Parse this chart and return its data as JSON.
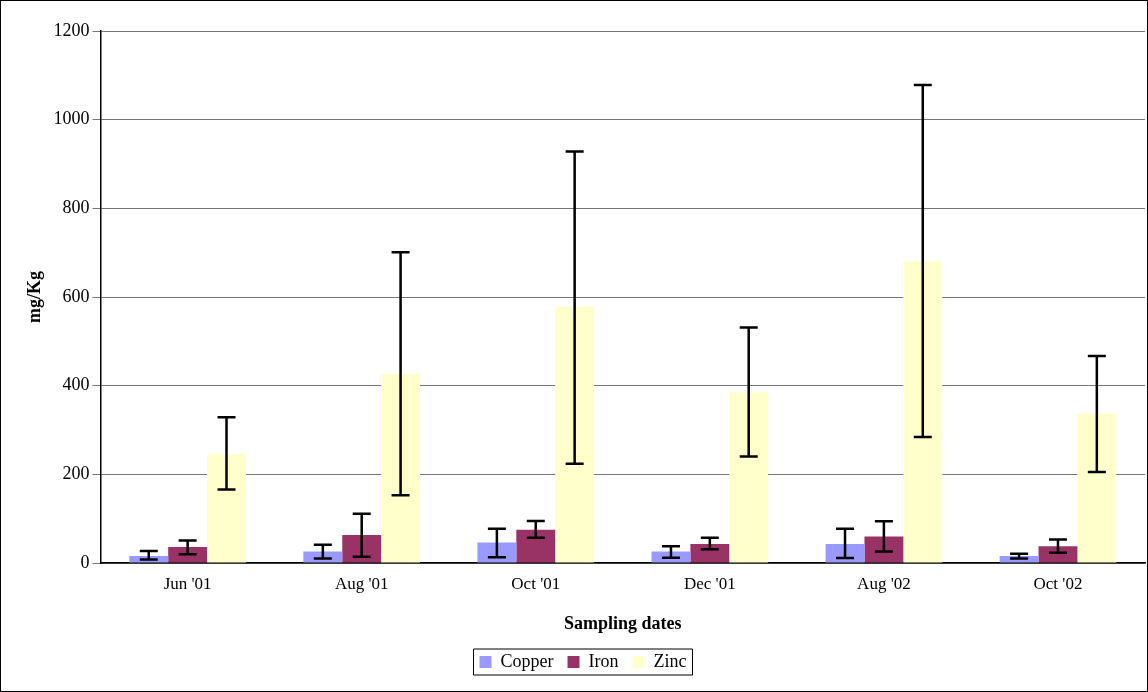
{
  "chart_data": {
    "type": "bar",
    "xlabel": "Sampling dates",
    "ylabel": "mg/Kg",
    "categories": [
      "Jun '01",
      "Aug '01",
      "Oct '01",
      "Dec '01",
      "Aug '02",
      "Oct '02"
    ],
    "series": [
      {
        "name": "Copper",
        "color": "#9999ff",
        "values": [
          16,
          26,
          46,
          26,
          43,
          16
        ],
        "errors": [
          [
            8,
            27
          ],
          [
            10,
            41
          ],
          [
            13,
            77
          ],
          [
            12,
            38
          ],
          [
            11,
            77
          ],
          [
            10,
            21
          ]
        ]
      },
      {
        "name": "Iron",
        "color": "#993366",
        "values": [
          36,
          63,
          75,
          43,
          60,
          38
        ],
        "errors": [
          [
            20,
            51
          ],
          [
            14,
            111
          ],
          [
            57,
            95
          ],
          [
            31,
            57
          ],
          [
            26,
            94
          ],
          [
            23,
            53
          ]
        ]
      },
      {
        "name": "Zinc",
        "color": "#ffffcc",
        "values": [
          246,
          427,
          578,
          385,
          680,
          337
        ],
        "errors": [
          [
            166,
            329
          ],
          [
            153,
            701
          ],
          [
            224,
            928
          ],
          [
            240,
            531
          ],
          [
            284,
            1078
          ],
          [
            205,
            467
          ]
        ]
      }
    ],
    "ylim": [
      0,
      1200
    ],
    "yticks": [
      0,
      200,
      400,
      600,
      800,
      1000,
      1200
    ],
    "grid": "y",
    "legend": "bottom"
  }
}
